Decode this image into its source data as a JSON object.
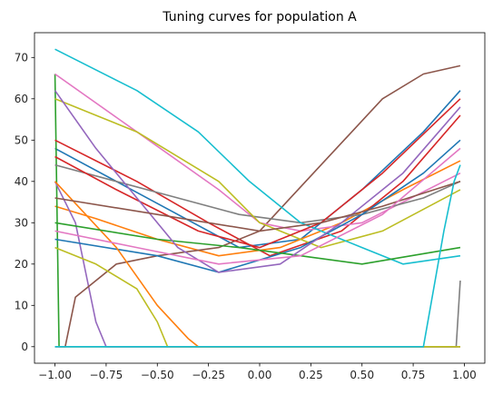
{
  "chart_data": {
    "type": "line",
    "title": "Tuning curves for population A",
    "xlabel": "",
    "ylabel": "",
    "xlim": [
      -1.1,
      1.1
    ],
    "ylim": [
      -4,
      76
    ],
    "xticks": [
      -1.0,
      -0.75,
      -0.5,
      -0.25,
      0.0,
      0.25,
      0.5,
      0.75,
      1.0
    ],
    "xtick_labels": [
      "−1.00",
      "−0.75",
      "−0.50",
      "−0.25",
      "0.00",
      "0.25",
      "0.50",
      "0.75",
      "1.00"
    ],
    "yticks": [
      0,
      10,
      20,
      30,
      40,
      50,
      60,
      70
    ],
    "ytick_labels": [
      "0",
      "10",
      "20",
      "30",
      "40",
      "50",
      "60",
      "70"
    ],
    "grid": false,
    "legend": "none",
    "series": [
      {
        "color": "#1f77b4",
        "x": [
          -1.0,
          -0.7,
          -0.4,
          -0.1,
          0.2,
          0.5,
          0.8,
          0.98
        ],
        "y": [
          48,
          40,
          32,
          24,
          26,
          38,
          52,
          62
        ]
      },
      {
        "color": "#ff7f0e",
        "x": [
          -1.0,
          -0.8,
          -0.5,
          -0.2,
          0.1,
          0.4,
          0.7,
          0.98
        ],
        "y": [
          34,
          31,
          26,
          22,
          24,
          30,
          38,
          45
        ]
      },
      {
        "color": "#2ca02c",
        "x": [
          -1.0,
          -0.98,
          -0.5,
          0.0,
          0.98
        ],
        "y": [
          66,
          0,
          0,
          0,
          0
        ]
      },
      {
        "color": "#d62728",
        "x": [
          -1.0,
          -0.6,
          -0.25,
          0.05,
          0.4,
          0.7,
          0.98
        ],
        "y": [
          50,
          40,
          30,
          22,
          28,
          40,
          56
        ]
      },
      {
        "color": "#9467bd",
        "x": [
          -1.0,
          -0.9,
          -0.85,
          -0.8,
          -0.75,
          -0.5,
          0.98
        ],
        "y": [
          40,
          30,
          18,
          6,
          0,
          0,
          0
        ]
      },
      {
        "color": "#8c564b",
        "x": [
          -1.0,
          -0.95,
          -0.9,
          -0.7,
          -0.5,
          -0.2,
          0.0,
          0.3,
          0.6,
          0.8,
          0.98
        ],
        "y": [
          0,
          0,
          12,
          20,
          22,
          24,
          28,
          44,
          60,
          66,
          68
        ]
      },
      {
        "color": "#e377c2",
        "x": [
          -1.0,
          -0.6,
          -0.2,
          0.0,
          0.2,
          0.5,
          0.98
        ],
        "y": [
          66,
          52,
          38,
          30,
          28,
          30,
          42
        ]
      },
      {
        "color": "#7f7f7f",
        "x": [
          -1.0,
          -0.7,
          -0.4,
          -0.1,
          0.2,
          0.5,
          0.8,
          0.98
        ],
        "y": [
          44,
          40,
          36,
          32,
          30,
          32,
          36,
          40
        ]
      },
      {
        "color": "#bcbd22",
        "x": [
          -1.0,
          -0.6,
          -0.2,
          0.0,
          0.3,
          0.6,
          0.98
        ],
        "y": [
          60,
          52,
          40,
          30,
          24,
          28,
          38
        ]
      },
      {
        "color": "#17becf",
        "x": [
          -1.0,
          -0.6,
          -0.3,
          -0.05,
          0.2,
          0.5,
          0.7,
          0.98
        ],
        "y": [
          72,
          62,
          52,
          40,
          30,
          24,
          20,
          22
        ]
      },
      {
        "color": "#1f77b4",
        "x": [
          -1.0,
          -0.5,
          -0.2,
          0.2,
          0.5,
          0.8,
          0.98
        ],
        "y": [
          26,
          22,
          18,
          24,
          32,
          42,
          50
        ]
      },
      {
        "color": "#ff7f0e",
        "x": [
          -1.0,
          -0.7,
          -0.5,
          -0.35,
          -0.3,
          0.98
        ],
        "y": [
          40,
          24,
          10,
          2,
          0,
          0
        ]
      },
      {
        "color": "#2ca02c",
        "x": [
          -1.0,
          -0.5,
          -0.1,
          0.2,
          0.5,
          0.98
        ],
        "y": [
          30,
          26,
          24,
          22,
          20,
          24
        ]
      },
      {
        "color": "#d62728",
        "x": [
          -1.0,
          -0.7,
          -0.3,
          0.0,
          0.3,
          0.6,
          0.98
        ],
        "y": [
          46,
          38,
          28,
          24,
          30,
          42,
          60
        ]
      },
      {
        "color": "#9467bd",
        "x": [
          -1.0,
          -0.8,
          -0.6,
          -0.4,
          -0.2,
          0.1,
          0.4,
          0.7,
          0.98
        ],
        "y": [
          62,
          48,
          36,
          24,
          18,
          20,
          30,
          42,
          58
        ]
      },
      {
        "color": "#8c564b",
        "x": [
          -1.0,
          -0.5,
          0.0,
          0.3,
          0.6,
          0.98
        ],
        "y": [
          36,
          32,
          28,
          30,
          34,
          40
        ]
      },
      {
        "color": "#e377c2",
        "x": [
          -1.0,
          -0.6,
          -0.2,
          0.2,
          0.6,
          0.98
        ],
        "y": [
          28,
          24,
          20,
          22,
          32,
          48
        ]
      },
      {
        "color": "#7f7f7f",
        "x": [
          -1.0,
          0.9,
          0.92,
          0.94,
          0.96,
          0.98
        ],
        "y": [
          0,
          0,
          0,
          0,
          0,
          16
        ]
      },
      {
        "color": "#bcbd22",
        "x": [
          -1.0,
          -0.8,
          -0.6,
          -0.5,
          -0.45,
          0.98
        ],
        "y": [
          24,
          20,
          14,
          6,
          0,
          0
        ]
      },
      {
        "color": "#17becf",
        "x": [
          -1.0,
          0.8,
          0.85,
          0.9,
          0.95,
          0.98
        ],
        "y": [
          0,
          0,
          14,
          28,
          40,
          44
        ]
      }
    ]
  }
}
